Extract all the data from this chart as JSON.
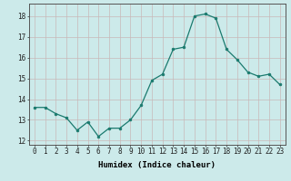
{
  "x": [
    0,
    1,
    2,
    3,
    4,
    5,
    6,
    7,
    8,
    9,
    10,
    11,
    12,
    13,
    14,
    15,
    16,
    17,
    18,
    19,
    20,
    21,
    22,
    23
  ],
  "y": [
    13.6,
    13.6,
    13.3,
    13.1,
    12.5,
    12.9,
    12.2,
    12.6,
    12.6,
    13.0,
    13.7,
    14.9,
    15.2,
    16.4,
    16.5,
    18.0,
    18.1,
    17.9,
    16.4,
    15.9,
    15.3,
    15.1,
    15.2,
    14.7
  ],
  "xlabel": "Humidex (Indice chaleur)",
  "xlim": [
    -0.5,
    23.5
  ],
  "ylim": [
    11.8,
    18.6
  ],
  "yticks": [
    12,
    13,
    14,
    15,
    16,
    17,
    18
  ],
  "xticks": [
    0,
    1,
    2,
    3,
    4,
    5,
    6,
    7,
    8,
    9,
    10,
    11,
    12,
    13,
    14,
    15,
    16,
    17,
    18,
    19,
    20,
    21,
    22,
    23
  ],
  "line_color": "#1a7a6e",
  "marker_color": "#1a7a6e",
  "bg_color": "#cceaea",
  "grid_color": "#c8b8b8",
  "label_fontsize": 6.5,
  "tick_fontsize": 5.5
}
